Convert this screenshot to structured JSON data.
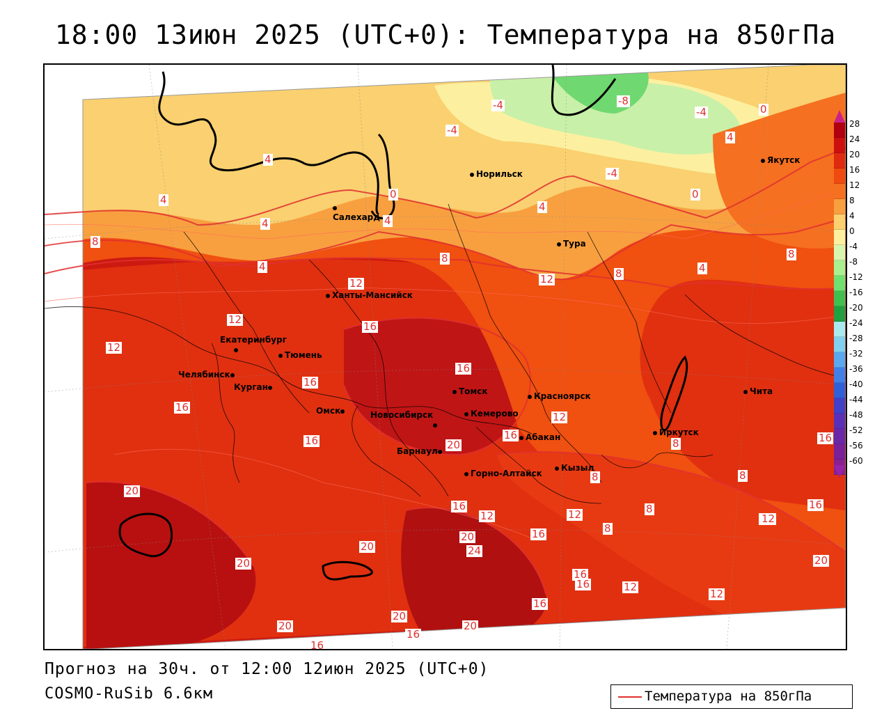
{
  "title": "18:00 13июн 2025 (UTC+0): Температура на 850гПа",
  "footer": {
    "forecast": "Прогноз на 30ч. от 12:00 12июн 2025 (UTC+0)",
    "model": "COSMO-RuSib 6.6км"
  },
  "legend": {
    "label": "Температура на 850гПа",
    "line_color": "#e03030"
  },
  "colorbar": {
    "ticks": [
      "28",
      "24",
      "20",
      "16",
      "12",
      "8",
      "4",
      "0",
      "-4",
      "-8",
      "-12",
      "-16",
      "-20",
      "-24",
      "-28",
      "-32",
      "-36",
      "-40",
      "-44",
      "-48",
      "-52",
      "-56",
      "-60"
    ],
    "colors": [
      "#b00010",
      "#cc1010",
      "#e02a10",
      "#f04a10",
      "#f57020",
      "#f8a040",
      "#fad070",
      "#fcf0a0",
      "#d8f5b0",
      "#a8f090",
      "#70e070",
      "#40c050",
      "#20a040",
      "#a8eaf0",
      "#80d0f0",
      "#5aa8f0",
      "#4080e8",
      "#3060d8",
      "#4040c8",
      "#5a30b8",
      "#6a28a8",
      "#7a2098",
      "#882090"
    ]
  },
  "cities": [
    {
      "name": "Норильск"
    },
    {
      "name": "Якутск"
    },
    {
      "name": "Салехард"
    },
    {
      "name": "Тура"
    },
    {
      "name": "Ханты-Мансийск"
    },
    {
      "name": "Екатеринбург"
    },
    {
      "name": "Тюмень"
    },
    {
      "name": "Челябинск"
    },
    {
      "name": "Курган"
    },
    {
      "name": "Омск"
    },
    {
      "name": "Новосибирск"
    },
    {
      "name": "Томск"
    },
    {
      "name": "Кемерово"
    },
    {
      "name": "Красноярск"
    },
    {
      "name": "Абакан"
    },
    {
      "name": "Барнаул"
    },
    {
      "name": "Горно-Алтайск"
    },
    {
      "name": "Кызыл"
    },
    {
      "name": "Иркутск"
    },
    {
      "name": "Чита"
    }
  ],
  "contour_labels": [
    "-4",
    "-8",
    "-4",
    "0",
    "-4",
    "4",
    "-4",
    "4",
    "4",
    "0",
    "4",
    "0",
    "4",
    "4",
    "8",
    "4",
    "8",
    "8",
    "4",
    "8",
    "12",
    "12",
    "12",
    "16",
    "12",
    "16",
    "16",
    "16",
    "16",
    "20",
    "16",
    "12",
    "16",
    "20",
    "20",
    "16",
    "12",
    "12",
    "8",
    "8",
    "8",
    "12",
    "16",
    "12",
    "16",
    "20",
    "20",
    "24",
    "16",
    "16",
    "12",
    "12",
    "20",
    "20",
    "20",
    "20",
    "16",
    "16",
    "8",
    "8",
    "16"
  ]
}
